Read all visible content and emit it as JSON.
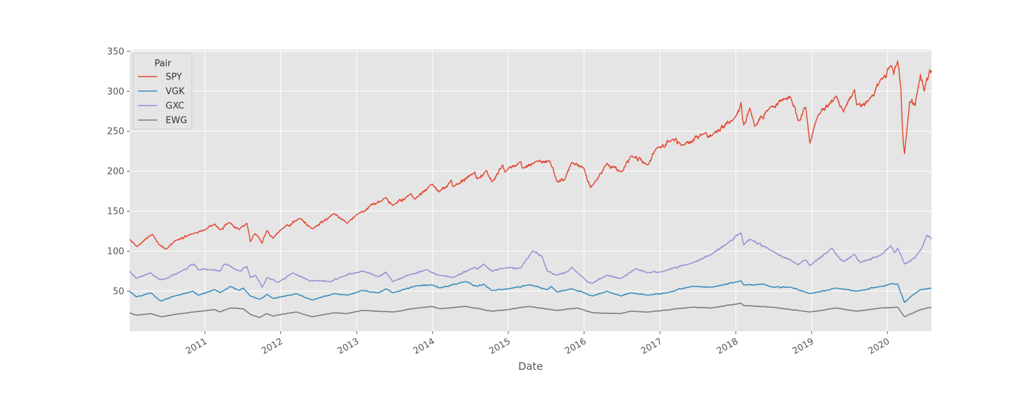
{
  "chart_data": {
    "type": "line",
    "title": "",
    "xlabel": "Date",
    "ylabel": "",
    "x_range": [
      "2010-01-04",
      "2020-07-31"
    ],
    "ylim": [
      0,
      352
    ],
    "x_ticks": [
      "2011",
      "2012",
      "2013",
      "2014",
      "2015",
      "2016",
      "2017",
      "2018",
      "2019",
      "2020"
    ],
    "y_ticks": [
      50,
      100,
      150,
      200,
      250,
      300,
      350
    ],
    "grid": true,
    "style": "ggplot",
    "legend": {
      "title": "Pair",
      "position": "top-left"
    },
    "series": [
      {
        "name": "SPY",
        "color": "#E24A33",
        "points": [
          [
            "2010-01-04",
            115
          ],
          [
            "2010-02-08",
            106
          ],
          [
            "2010-04-23",
            121
          ],
          [
            "2010-05-25",
            108
          ],
          [
            "2010-07-02",
            103
          ],
          [
            "2010-08-09",
            113
          ],
          [
            "2010-11-05",
            122
          ],
          [
            "2011-01-03",
            127
          ],
          [
            "2011-02-18",
            134
          ],
          [
            "2011-03-16",
            127
          ],
          [
            "2011-04-29",
            136
          ],
          [
            "2011-06-15",
            127
          ],
          [
            "2011-07-22",
            135
          ],
          [
            "2011-08-08",
            112
          ],
          [
            "2011-09-01",
            122
          ],
          [
            "2011-10-03",
            110
          ],
          [
            "2011-10-27",
            126
          ],
          [
            "2011-11-25",
            116
          ],
          [
            "2012-01-03",
            127
          ],
          [
            "2012-04-02",
            141
          ],
          [
            "2012-06-01",
            128
          ],
          [
            "2012-09-14",
            147
          ],
          [
            "2012-11-15",
            135
          ],
          [
            "2013-01-02",
            146
          ],
          [
            "2013-05-21",
            167
          ],
          [
            "2013-06-24",
            157
          ],
          [
            "2013-09-18",
            172
          ],
          [
            "2013-10-08",
            165
          ],
          [
            "2013-12-31",
            184
          ],
          [
            "2014-02-03",
            174
          ],
          [
            "2014-04-02",
            189
          ],
          [
            "2014-04-11",
            181
          ],
          [
            "2014-07-24",
            199
          ],
          [
            "2014-08-07",
            191
          ],
          [
            "2014-09-18",
            201
          ],
          [
            "2014-10-15",
            187
          ],
          [
            "2014-12-05",
            208
          ],
          [
            "2014-12-16",
            199
          ],
          [
            "2015-03-02",
            212
          ],
          [
            "2015-03-10",
            204
          ],
          [
            "2015-05-21",
            213
          ],
          [
            "2015-07-20",
            213
          ],
          [
            "2015-08-24",
            187
          ],
          [
            "2015-09-29",
            189
          ],
          [
            "2015-11-03",
            211
          ],
          [
            "2015-12-31",
            204
          ],
          [
            "2016-01-20",
            186
          ],
          [
            "2016-02-11",
            182
          ],
          [
            "2016-04-20",
            210
          ],
          [
            "2016-06-27",
            199
          ],
          [
            "2016-08-15",
            219
          ],
          [
            "2016-11-04",
            208
          ],
          [
            "2016-12-13",
            228
          ],
          [
            "2017-03-01",
            240
          ],
          [
            "2017-04-13",
            232
          ],
          [
            "2017-08-08",
            248
          ],
          [
            "2017-09-05",
            244
          ],
          [
            "2017-12-29",
            268
          ],
          [
            "2018-01-26",
            286
          ],
          [
            "2018-02-08",
            258
          ],
          [
            "2018-03-09",
            279
          ],
          [
            "2018-04-02",
            256
          ],
          [
            "2018-06-12",
            279
          ],
          [
            "2018-08-29",
            291
          ],
          [
            "2018-09-20",
            293
          ],
          [
            "2018-10-29",
            263
          ],
          [
            "2018-12-03",
            280
          ],
          [
            "2018-12-24",
            235
          ],
          [
            "2019-01-31",
            270
          ],
          [
            "2019-04-30",
            294
          ],
          [
            "2019-06-03",
            274
          ],
          [
            "2019-07-26",
            302
          ],
          [
            "2019-08-05",
            283
          ],
          [
            "2019-10-02",
            288
          ],
          [
            "2019-11-29",
            315
          ],
          [
            "2020-01-17",
            332
          ],
          [
            "2020-01-31",
            321
          ],
          [
            "2020-02-19",
            338
          ],
          [
            "2020-03-05",
            305
          ],
          [
            "2020-03-16",
            240
          ],
          [
            "2020-03-23",
            222
          ],
          [
            "2020-04-17",
            287
          ],
          [
            "2020-05-13",
            282
          ],
          [
            "2020-06-08",
            321
          ],
          [
            "2020-06-26",
            300
          ],
          [
            "2020-07-22",
            327
          ],
          [
            "2020-07-31",
            326
          ]
        ]
      },
      {
        "name": "VGK",
        "color": "#348ABD",
        "points": [
          [
            "2010-01-04",
            50
          ],
          [
            "2010-02-05",
            43
          ],
          [
            "2010-04-15",
            48
          ],
          [
            "2010-05-25",
            39
          ],
          [
            "2010-06-07",
            38
          ],
          [
            "2010-08-09",
            44
          ],
          [
            "2010-11-05",
            50
          ],
          [
            "2010-11-30",
            45
          ],
          [
            "2011-02-18",
            52
          ],
          [
            "2011-03-16",
            48
          ],
          [
            "2011-05-02",
            56
          ],
          [
            "2011-06-15",
            51
          ],
          [
            "2011-07-05",
            54
          ],
          [
            "2011-08-08",
            44
          ],
          [
            "2011-09-22",
            40
          ],
          [
            "2011-10-27",
            46
          ],
          [
            "2011-11-25",
            41
          ],
          [
            "2012-01-03",
            43
          ],
          [
            "2012-03-16",
            47
          ],
          [
            "2012-06-01",
            39
          ],
          [
            "2012-09-14",
            47
          ],
          [
            "2012-11-15",
            45
          ],
          [
            "2013-01-25",
            51
          ],
          [
            "2013-04-18",
            48
          ],
          [
            "2013-05-21",
            53
          ],
          [
            "2013-06-24",
            48
          ],
          [
            "2013-10-21",
            57
          ],
          [
            "2013-12-31",
            58
          ],
          [
            "2014-02-03",
            54
          ],
          [
            "2014-06-10",
            62
          ],
          [
            "2014-08-07",
            56
          ],
          [
            "2014-09-05",
            59
          ],
          [
            "2014-10-15",
            51
          ],
          [
            "2014-12-31",
            53
          ],
          [
            "2015-04-15",
            58
          ],
          [
            "2015-07-08",
            52
          ],
          [
            "2015-07-27",
            56
          ],
          [
            "2015-08-24",
            49
          ],
          [
            "2015-11-03",
            53
          ],
          [
            "2016-02-11",
            44
          ],
          [
            "2016-04-20",
            50
          ],
          [
            "2016-06-27",
            44
          ],
          [
            "2016-08-15",
            48
          ],
          [
            "2016-11-04",
            45
          ],
          [
            "2017-02-03",
            48
          ],
          [
            "2017-06-02",
            56
          ],
          [
            "2017-09-05",
            55
          ],
          [
            "2018-01-26",
            63
          ],
          [
            "2018-02-08",
            58
          ],
          [
            "2018-05-15",
            59
          ],
          [
            "2018-06-28",
            55
          ],
          [
            "2018-09-20",
            55
          ],
          [
            "2018-12-24",
            47
          ],
          [
            "2019-04-30",
            54
          ],
          [
            "2019-08-05",
            50
          ],
          [
            "2019-11-29",
            56
          ],
          [
            "2020-01-17",
            59
          ],
          [
            "2020-02-19",
            59
          ],
          [
            "2020-03-23",
            36
          ],
          [
            "2020-04-30",
            45
          ],
          [
            "2020-06-08",
            52
          ],
          [
            "2020-07-31",
            54
          ]
        ]
      },
      {
        "name": "GXC",
        "color": "#988ED5",
        "points": [
          [
            "2010-01-04",
            75
          ],
          [
            "2010-02-05",
            66
          ],
          [
            "2010-04-15",
            73
          ],
          [
            "2010-05-25",
            65
          ],
          [
            "2010-07-02",
            66
          ],
          [
            "2010-09-10",
            75
          ],
          [
            "2010-11-08",
            84
          ],
          [
            "2010-11-30",
            77
          ],
          [
            "2011-01-25",
            77
          ],
          [
            "2011-03-16",
            75
          ],
          [
            "2011-04-08",
            84
          ],
          [
            "2011-06-20",
            75
          ],
          [
            "2011-07-22",
            81
          ],
          [
            "2011-08-08",
            67
          ],
          [
            "2011-09-01",
            70
          ],
          [
            "2011-10-04",
            55
          ],
          [
            "2011-10-27",
            67
          ],
          [
            "2011-12-19",
            61
          ],
          [
            "2012-02-29",
            73
          ],
          [
            "2012-05-18",
            63
          ],
          [
            "2012-08-31",
            62
          ],
          [
            "2012-10-18",
            68
          ],
          [
            "2012-12-31",
            73
          ],
          [
            "2013-02-01",
            75
          ],
          [
            "2013-04-18",
            68
          ],
          [
            "2013-05-21",
            74
          ],
          [
            "2013-06-24",
            62
          ],
          [
            "2013-09-18",
            71
          ],
          [
            "2013-12-02",
            77
          ],
          [
            "2014-02-03",
            70
          ],
          [
            "2014-04-11",
            67
          ],
          [
            "2014-07-24",
            80
          ],
          [
            "2014-08-07",
            78
          ],
          [
            "2014-09-05",
            84
          ],
          [
            "2014-10-15",
            75
          ],
          [
            "2014-12-16",
            79
          ],
          [
            "2015-03-02",
            79
          ],
          [
            "2015-04-27",
            100
          ],
          [
            "2015-06-12",
            94
          ],
          [
            "2015-07-08",
            75
          ],
          [
            "2015-08-24",
            70
          ],
          [
            "2015-10-16",
            75
          ],
          [
            "2015-11-03",
            80
          ],
          [
            "2016-01-20",
            61
          ],
          [
            "2016-02-11",
            60
          ],
          [
            "2016-04-20",
            70
          ],
          [
            "2016-06-27",
            66
          ],
          [
            "2016-09-07",
            78
          ],
          [
            "2016-11-04",
            73
          ],
          [
            "2017-01-03",
            74
          ],
          [
            "2017-06-02",
            85
          ],
          [
            "2017-09-05",
            96
          ],
          [
            "2017-11-22",
            110
          ],
          [
            "2018-01-26",
            123
          ],
          [
            "2018-02-08",
            108
          ],
          [
            "2018-03-09",
            115
          ],
          [
            "2018-06-28",
            100
          ],
          [
            "2018-10-29",
            83
          ],
          [
            "2018-12-03",
            89
          ],
          [
            "2018-12-24",
            82
          ],
          [
            "2019-04-08",
            104
          ],
          [
            "2019-05-13",
            92
          ],
          [
            "2019-06-03",
            87
          ],
          [
            "2019-07-26",
            96
          ],
          [
            "2019-08-23",
            86
          ],
          [
            "2019-11-29",
            95
          ],
          [
            "2020-01-17",
            107
          ],
          [
            "2020-02-03",
            98
          ],
          [
            "2020-02-19",
            104
          ],
          [
            "2020-03-23",
            84
          ],
          [
            "2020-05-13",
            92
          ],
          [
            "2020-06-08",
            101
          ],
          [
            "2020-07-08",
            120
          ],
          [
            "2020-07-31",
            115
          ]
        ]
      },
      {
        "name": "EWG",
        "color": "#777777",
        "points": [
          [
            "2010-01-04",
            23
          ],
          [
            "2010-02-05",
            20
          ],
          [
            "2010-04-15",
            22
          ],
          [
            "2010-06-07",
            18
          ],
          [
            "2010-08-09",
            21
          ],
          [
            "2010-11-05",
            24
          ],
          [
            "2011-02-18",
            27
          ],
          [
            "2011-03-16",
            24
          ],
          [
            "2011-05-02",
            29
          ],
          [
            "2011-07-05",
            28
          ],
          [
            "2011-08-08",
            21
          ],
          [
            "2011-09-22",
            17
          ],
          [
            "2011-10-27",
            22
          ],
          [
            "2011-11-25",
            19
          ],
          [
            "2012-03-16",
            24
          ],
          [
            "2012-06-01",
            18
          ],
          [
            "2012-09-14",
            23
          ],
          [
            "2012-11-15",
            22
          ],
          [
            "2013-01-25",
            26
          ],
          [
            "2013-06-24",
            24
          ],
          [
            "2013-10-21",
            29
          ],
          [
            "2013-12-31",
            31
          ],
          [
            "2014-02-03",
            28
          ],
          [
            "2014-06-10",
            31
          ],
          [
            "2014-10-15",
            25
          ],
          [
            "2014-12-31",
            27
          ],
          [
            "2015-04-10",
            31
          ],
          [
            "2015-08-24",
            26
          ],
          [
            "2015-11-30",
            29
          ],
          [
            "2016-02-11",
            23
          ],
          [
            "2016-06-27",
            22
          ],
          [
            "2016-08-15",
            25
          ],
          [
            "2016-11-04",
            24
          ],
          [
            "2017-06-02",
            30
          ],
          [
            "2017-09-05",
            29
          ],
          [
            "2018-01-26",
            35
          ],
          [
            "2018-02-08",
            32
          ],
          [
            "2018-06-28",
            30
          ],
          [
            "2018-12-24",
            24
          ],
          [
            "2019-04-30",
            29
          ],
          [
            "2019-08-05",
            25
          ],
          [
            "2019-11-29",
            29
          ],
          [
            "2020-02-19",
            30
          ],
          [
            "2020-03-23",
            18
          ],
          [
            "2020-06-08",
            27
          ],
          [
            "2020-07-31",
            30
          ]
        ]
      }
    ]
  }
}
